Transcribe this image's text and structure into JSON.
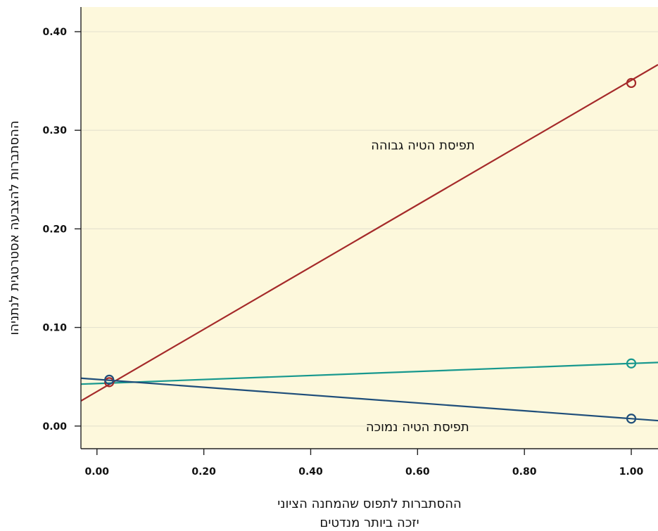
{
  "chart_data": {
    "type": "line",
    "title": "",
    "xlabel": [
      "ההסתברות לתפוס שהמחנה הציוני",
      "יזכה ביותר מנדטים"
    ],
    "ylabel": "ההסתברות להצבעה אסטרטגית לנתניהו",
    "xlim": [
      -0.03,
      1.05
    ],
    "ylim": [
      -0.023,
      0.425
    ],
    "x_ticks": [
      0.0,
      0.2,
      0.4,
      0.6,
      0.8,
      1.0
    ],
    "x_tick_labels": [
      "0.00",
      "0.20",
      "0.40",
      "0.60",
      "0.80",
      "1.00"
    ],
    "y_ticks": [
      0.0,
      0.1,
      0.2,
      0.3,
      0.4
    ],
    "y_tick_labels": [
      "0.00",
      "0.10",
      "0.20",
      "0.30",
      "0.40"
    ],
    "grid": "horizontal",
    "legend": "none",
    "colors": {
      "plot_background": "#fdf8dc",
      "grid": "#e6e3cf",
      "axis": "#222222"
    },
    "series": [
      {
        "color": "#a52a2a",
        "line": {
          "x": [
            -0.03,
            1.05
          ],
          "y": [
            0.0255,
            0.3665
          ]
        },
        "points": [
          {
            "x": 0.023,
            "y": 0.0445
          },
          {
            "x": 1.0,
            "y": 0.348
          }
        ]
      },
      {
        "color": "#17988e",
        "line": {
          "x": [
            -0.03,
            1.05
          ],
          "y": [
            0.0425,
            0.0645
          ]
        },
        "points": [
          {
            "x": 1.0,
            "y": 0.0635
          }
        ]
      },
      {
        "color": "#1f4e7a",
        "line": {
          "x": [
            -0.03,
            1.05
          ],
          "y": [
            0.0485,
            0.0055
          ]
        },
        "points": [
          {
            "x": 0.023,
            "y": 0.047
          },
          {
            "x": 1.0,
            "y": 0.0075
          }
        ]
      }
    ],
    "annotations": [
      {
        "text": "תפיסת הטיה גבוהה",
        "x": 0.61,
        "y": 0.285
      },
      {
        "text": "תפיסת הטיה נמוכה",
        "x": 0.6,
        "y": -0.001
      }
    ]
  }
}
